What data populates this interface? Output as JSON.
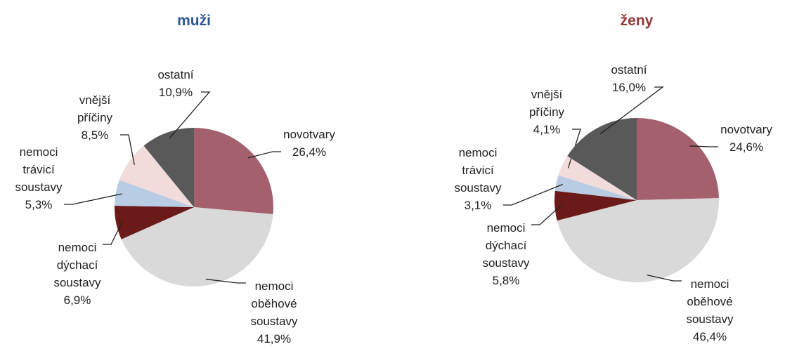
{
  "chart_data": [
    {
      "type": "pie",
      "title": "muži",
      "title_color": "#2e5597",
      "categories": [
        "novotvary",
        "nemoci oběhové soustavy",
        "nemoci dýchací soustavy",
        "nemoci trávicí soustavy",
        "vnější příčiny",
        "ostatní"
      ],
      "values": [
        26.4,
        41.9,
        6.9,
        5.3,
        8.5,
        10.9
      ],
      "value_labels": [
        "26,4%",
        "41,9%",
        "6,9%",
        "5,3%",
        "8,5%",
        "10,9%"
      ],
      "colors": [
        "#a5606e",
        "#d9d9d9",
        "#6b1a1a",
        "#b8cce4",
        "#f2dcdb",
        "#595959"
      ]
    },
    {
      "type": "pie",
      "title": "ženy",
      "title_color": "#953735",
      "categories": [
        "novotvary",
        "nemoci oběhové soustavy",
        "nemoci dýchací soustavy",
        "nemoci trávicí soustavy",
        "vnější příčiny",
        "ostatní"
      ],
      "values": [
        24.6,
        46.4,
        5.8,
        3.1,
        4.1,
        16.0
      ],
      "value_labels": [
        "24,6%",
        "46,4%",
        "5,8%",
        "3,1%",
        "4,1%",
        "16,0%"
      ],
      "colors": [
        "#a5606e",
        "#d9d9d9",
        "#6b1a1a",
        "#b8cce4",
        "#f2dcdb",
        "#595959"
      ]
    }
  ]
}
